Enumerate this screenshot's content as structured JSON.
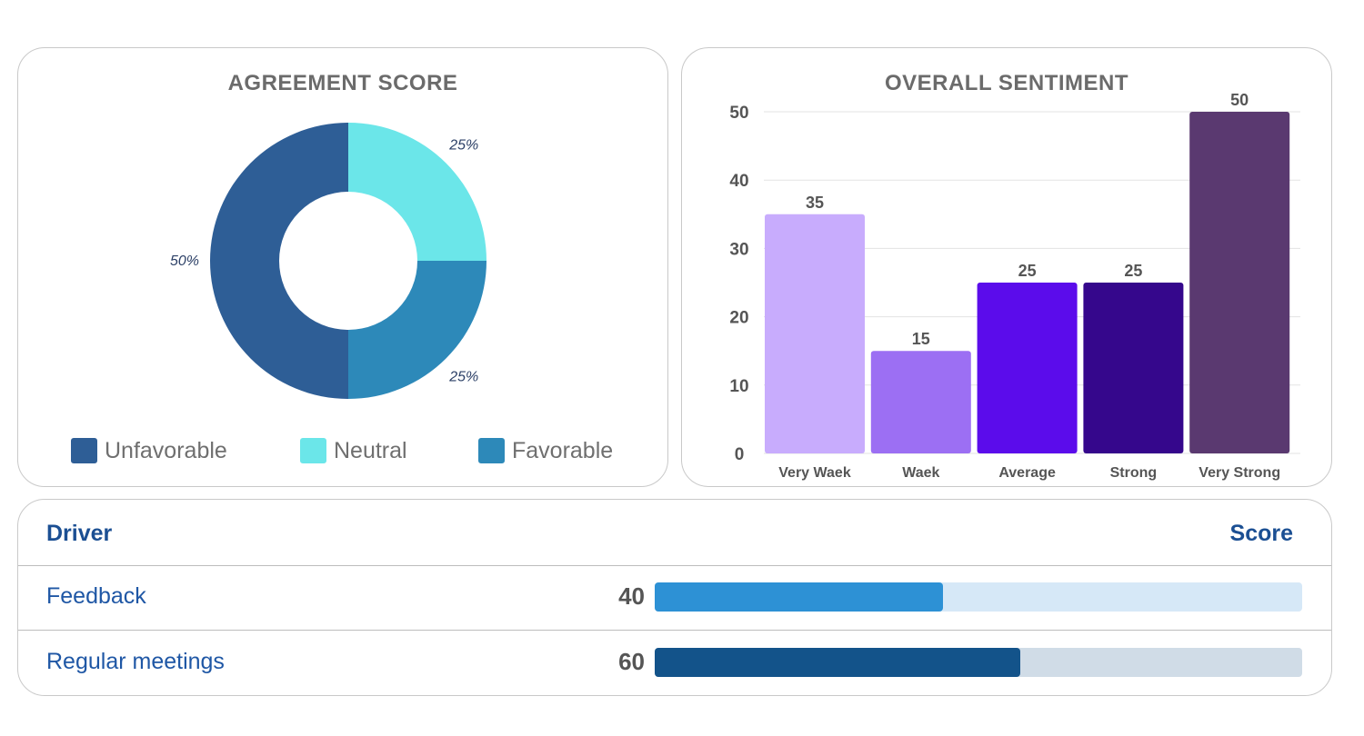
{
  "chart_data": [
    {
      "type": "pie",
      "title": "AGREEMENT SCORE",
      "categories": [
        "Unfavorable",
        "Neutral",
        "Favorable"
      ],
      "values": [
        50,
        25,
        25
      ],
      "labels": [
        "50%",
        "25%",
        "25%"
      ],
      "colors": [
        "#2e5e96",
        "#6be6e9",
        "#2d89b9"
      ],
      "donut": true,
      "legend": "bottom"
    },
    {
      "type": "bar",
      "title": "OVERALL SENTIMENT",
      "categories": [
        "Very Waek",
        "Waek",
        "Average",
        "Strong",
        "Very Strong"
      ],
      "values": [
        35,
        15,
        25,
        25,
        50
      ],
      "colors": [
        "#c8acfd",
        "#9c6ff3",
        "#5b0ceb",
        "#35078c",
        "#5a3970"
      ],
      "ylim": [
        0,
        50
      ],
      "yticks": [
        "0",
        "10",
        "20",
        "30",
        "40",
        "50"
      ],
      "grid": true,
      "xlabel": "",
      "ylabel": ""
    },
    {
      "type": "table",
      "columns": [
        "Driver",
        "Score"
      ],
      "rows": [
        {
          "driver": "Feedback",
          "score": 40,
          "fill": 0.445,
          "color": "#2d91d5",
          "track": "#d6e8f7"
        },
        {
          "driver": "Regular meetings",
          "score": 60,
          "fill": 0.565,
          "color": "#13538a",
          "track": "#d0dce7"
        }
      ]
    }
  ]
}
